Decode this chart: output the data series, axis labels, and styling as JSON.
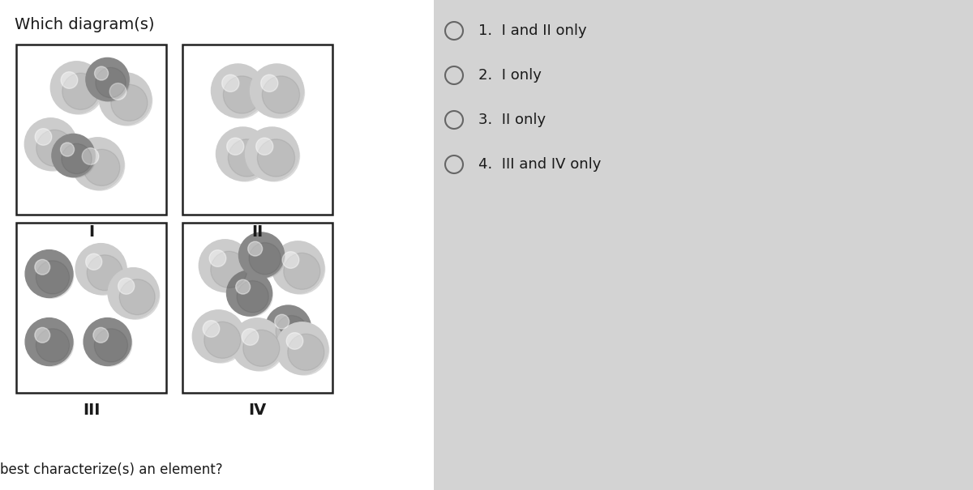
{
  "bg_left": "#ffffff",
  "bg_right": "#d3d3d3",
  "title_text": "Which diagram(s)",
  "bottom_text": "best characterize(s) an element?",
  "labels": [
    "I",
    "II",
    "III",
    "IV"
  ],
  "options": [
    "1.  I and II only",
    "2.  I only",
    "3.  II only",
    "4.  III and IV only"
  ],
  "light_color": "#cccccc",
  "dark_color": "#888888",
  "box_color": "#222222",
  "text_color": "#1a1a1a",
  "radio_color": "#666666",
  "highlight_color": "#eeeeee"
}
